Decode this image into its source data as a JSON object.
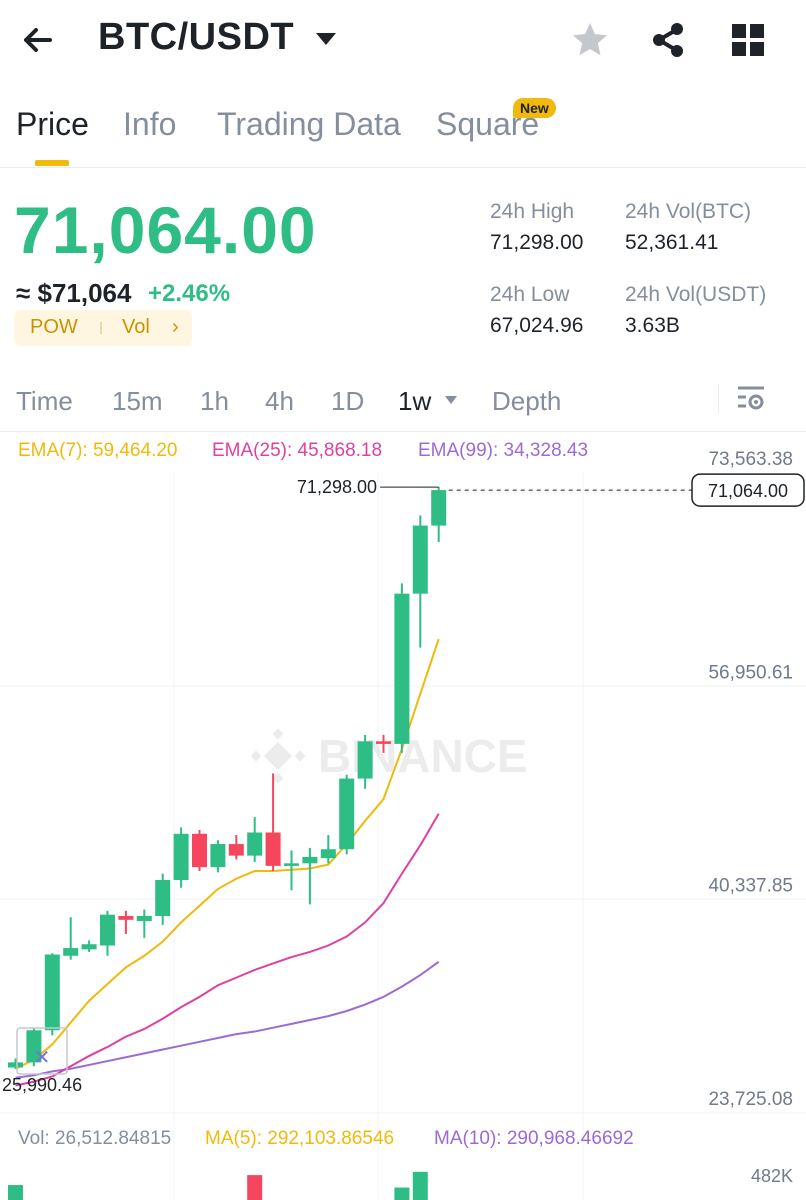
{
  "header": {
    "pair": "BTC/USDT"
  },
  "tabs": [
    {
      "label": "Price",
      "active": true
    },
    {
      "label": "Info",
      "active": false
    },
    {
      "label": "Trading Data",
      "active": false
    },
    {
      "label": "Square",
      "active": false,
      "badge": "New"
    }
  ],
  "price": {
    "last": "71,064.00",
    "approx": "≈ $71,064",
    "change": "+2.46%",
    "tag1": "POW",
    "tag2": "Vol",
    "tag_chevron": "›"
  },
  "stats": {
    "high_label": "24h High",
    "high_value": "71,298.00",
    "vol_btc_label": "24h Vol(BTC)",
    "vol_btc_value": "52,361.41",
    "low_label": "24h Low",
    "low_value": "67,024.96",
    "vol_usdt_label": "24h Vol(USDT)",
    "vol_usdt_value": "3.63B"
  },
  "intervals": [
    {
      "label": "Time",
      "active": false
    },
    {
      "label": "15m",
      "active": false
    },
    {
      "label": "1h",
      "active": false
    },
    {
      "label": "4h",
      "active": false
    },
    {
      "label": "1D",
      "active": false
    },
    {
      "label": "1w",
      "active": true
    },
    {
      "label": "Depth",
      "active": false
    }
  ],
  "indicators": {
    "ema7": "EMA(7): 59,464.20",
    "ema25": "EMA(25): 45,868.18",
    "ema99": "EMA(99): 34,328.43",
    "vol": "Vol: 26,512.84815",
    "ma5": "MA(5): 292,103.86546",
    "ma10": "MA(10): 290,968.46692"
  },
  "colors": {
    "up": "#2ebd85",
    "down": "#f6465d",
    "ema7": "#f0b90b",
    "ema25": "#e040a0",
    "ema99": "#9c6ad6",
    "accent": "#f0b90b"
  },
  "watermark": "BINANCE",
  "chart_data": {
    "type": "candlestick",
    "y_ticks": [
      "73,563.38",
      "56,950.61",
      "40,337.85",
      "23,725.08"
    ],
    "y_tick_values": [
      73563.38,
      56950.61,
      40337.85,
      23725.08
    ],
    "high_label": "71,298.00",
    "high_value": 71298.0,
    "low_label": "25,990.46",
    "low_value": 25990.46,
    "current_label": "71,064.00",
    "current_value": 71064.0,
    "volume_tick": "482K",
    "candles": [
      {
        "o": 26100,
        "h": 26800,
        "l": 25990,
        "c": 26500
      },
      {
        "o": 26500,
        "h": 29200,
        "l": 26200,
        "c": 29000
      },
      {
        "o": 29000,
        "h": 35000,
        "l": 28600,
        "c": 34900
      },
      {
        "o": 34800,
        "h": 37800,
        "l": 34500,
        "c": 35400
      },
      {
        "o": 35300,
        "h": 36000,
        "l": 35100,
        "c": 35700
      },
      {
        "o": 35600,
        "h": 38300,
        "l": 34800,
        "c": 38000
      },
      {
        "o": 37900,
        "h": 38300,
        "l": 36500,
        "c": 37600
      },
      {
        "o": 37500,
        "h": 38400,
        "l": 36200,
        "c": 37900
      },
      {
        "o": 37900,
        "h": 41200,
        "l": 37200,
        "c": 40700
      },
      {
        "o": 40700,
        "h": 44800,
        "l": 40100,
        "c": 44300
      },
      {
        "o": 44300,
        "h": 44600,
        "l": 41400,
        "c": 41700
      },
      {
        "o": 41700,
        "h": 43800,
        "l": 41300,
        "c": 43500
      },
      {
        "o": 43500,
        "h": 44200,
        "l": 42300,
        "c": 42600
      },
      {
        "o": 42600,
        "h": 45600,
        "l": 42100,
        "c": 44400
      },
      {
        "o": 44400,
        "h": 49000,
        "l": 41400,
        "c": 41800
      },
      {
        "o": 41800,
        "h": 43000,
        "l": 39900,
        "c": 42000
      },
      {
        "o": 42000,
        "h": 43200,
        "l": 38800,
        "c": 42500
      },
      {
        "o": 42400,
        "h": 44200,
        "l": 42000,
        "c": 43100
      },
      {
        "o": 43100,
        "h": 48900,
        "l": 42700,
        "c": 48600
      },
      {
        "o": 48600,
        "h": 52000,
        "l": 47800,
        "c": 51500
      },
      {
        "o": 51500,
        "h": 52000,
        "l": 50600,
        "c": 51300
      },
      {
        "o": 51300,
        "h": 63800,
        "l": 50600,
        "c": 63000
      },
      {
        "o": 63000,
        "h": 69100,
        "l": 58800,
        "c": 68300
      },
      {
        "o": 68300,
        "h": 71298,
        "l": 67025,
        "c": 71064
      }
    ],
    "ema7": [
      26000,
      26700,
      27900,
      29600,
      31300,
      32600,
      33900,
      34800,
      35900,
      37400,
      38700,
      40000,
      40800,
      41400,
      41400,
      41500,
      41600,
      41900,
      43500,
      45300,
      47000,
      50900,
      55200,
      59464
    ],
    "ema25": [
      24700,
      25000,
      25400,
      26200,
      27000,
      27700,
      28500,
      29100,
      29900,
      30800,
      31600,
      32500,
      33100,
      33700,
      34200,
      34700,
      35100,
      35600,
      36300,
      37400,
      38900,
      41200,
      43400,
      45868
    ],
    "ema99": [
      25300,
      25500,
      25800,
      26000,
      26300,
      26600,
      26900,
      27200,
      27500,
      27800,
      28100,
      28400,
      28700,
      28900,
      29200,
      29500,
      29800,
      30100,
      30500,
      31000,
      31600,
      32400,
      33300,
      34328
    ],
    "volume": [
      {
        "v": 180000,
        "up": true
      },
      {
        "v": 0,
        "up": true
      },
      {
        "v": 0,
        "up": true
      },
      {
        "v": 0,
        "up": true
      },
      {
        "v": 0,
        "up": true
      },
      {
        "v": 0,
        "up": true
      },
      {
        "v": 0,
        "up": true
      },
      {
        "v": 0,
        "up": true
      },
      {
        "v": 0,
        "up": true
      },
      {
        "v": 0,
        "up": true
      },
      {
        "v": 0,
        "up": true
      },
      {
        "v": 0,
        "up": true
      },
      {
        "v": 0,
        "up": true
      },
      {
        "v": 300000,
        "up": false
      },
      {
        "v": 0,
        "up": true
      },
      {
        "v": 0,
        "up": true
      },
      {
        "v": 0,
        "up": true
      },
      {
        "v": 0,
        "up": true
      },
      {
        "v": 0,
        "up": true
      },
      {
        "v": 0,
        "up": true
      },
      {
        "v": 0,
        "up": true
      },
      {
        "v": 150000,
        "up": true
      },
      {
        "v": 340000,
        "up": true
      },
      {
        "v": 0,
        "up": true
      }
    ]
  }
}
